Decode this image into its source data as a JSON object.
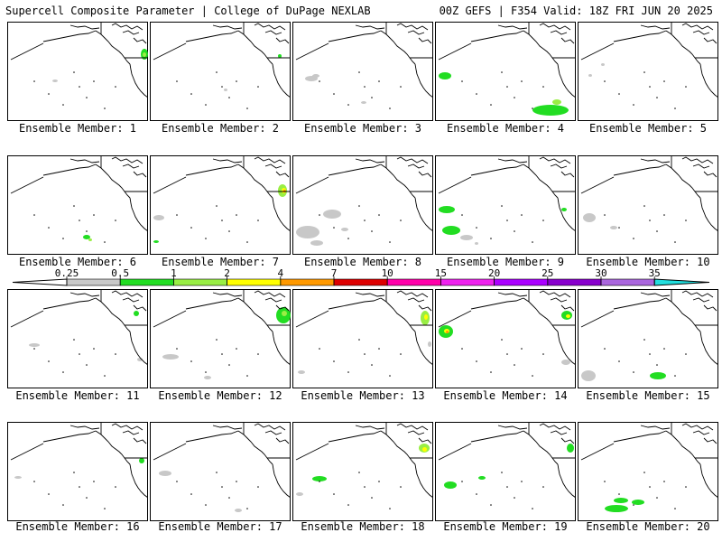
{
  "header": {
    "title_left": "Supercell Composite Parameter | College of DuPage NEXLAB",
    "title_right": "00Z GEFS | F354 Valid: 18Z FRI JUN 20 2025"
  },
  "colors": {
    "light_gray": "#c8c8c8",
    "green": "#22dd22",
    "light_green": "#99ee44",
    "yellow": "#ffff00",
    "orange": "#ff9900",
    "red": "#dd0000",
    "magenta": "#ff00aa",
    "pink": "#ee22ee",
    "violet": "#aa00ff",
    "purple": "#8800cc",
    "lavender": "#aa66dd",
    "cyan": "#22dddd"
  },
  "legend": {
    "ticks": [
      "0.25",
      "0.5",
      "1",
      "2",
      "4",
      "7",
      "10",
      "15",
      "20",
      "25",
      "30",
      "35"
    ]
  },
  "panels": [
    {
      "label": "Ensemble Member: 1"
    },
    {
      "label": "Ensemble Member: 2"
    },
    {
      "label": "Ensemble Member: 3"
    },
    {
      "label": "Ensemble Member: 4"
    },
    {
      "label": "Ensemble Member: 5"
    },
    {
      "label": "Ensemble Member: 6"
    },
    {
      "label": "Ensemble Member: 7"
    },
    {
      "label": "Ensemble Member: 8"
    },
    {
      "label": "Ensemble Member: 9"
    },
    {
      "label": "Ensemble Member: 10"
    },
    {
      "label": "Ensemble Member: 11"
    },
    {
      "label": "Ensemble Member: 12"
    },
    {
      "label": "Ensemble Member: 13"
    },
    {
      "label": "Ensemble Member: 14"
    },
    {
      "label": "Ensemble Member: 15"
    },
    {
      "label": "Ensemble Member: 16"
    },
    {
      "label": "Ensemble Member: 17"
    },
    {
      "label": "Ensemble Member: 18"
    },
    {
      "label": "Ensemble Member: 19"
    },
    {
      "label": "Ensemble Member: 20"
    }
  ]
}
